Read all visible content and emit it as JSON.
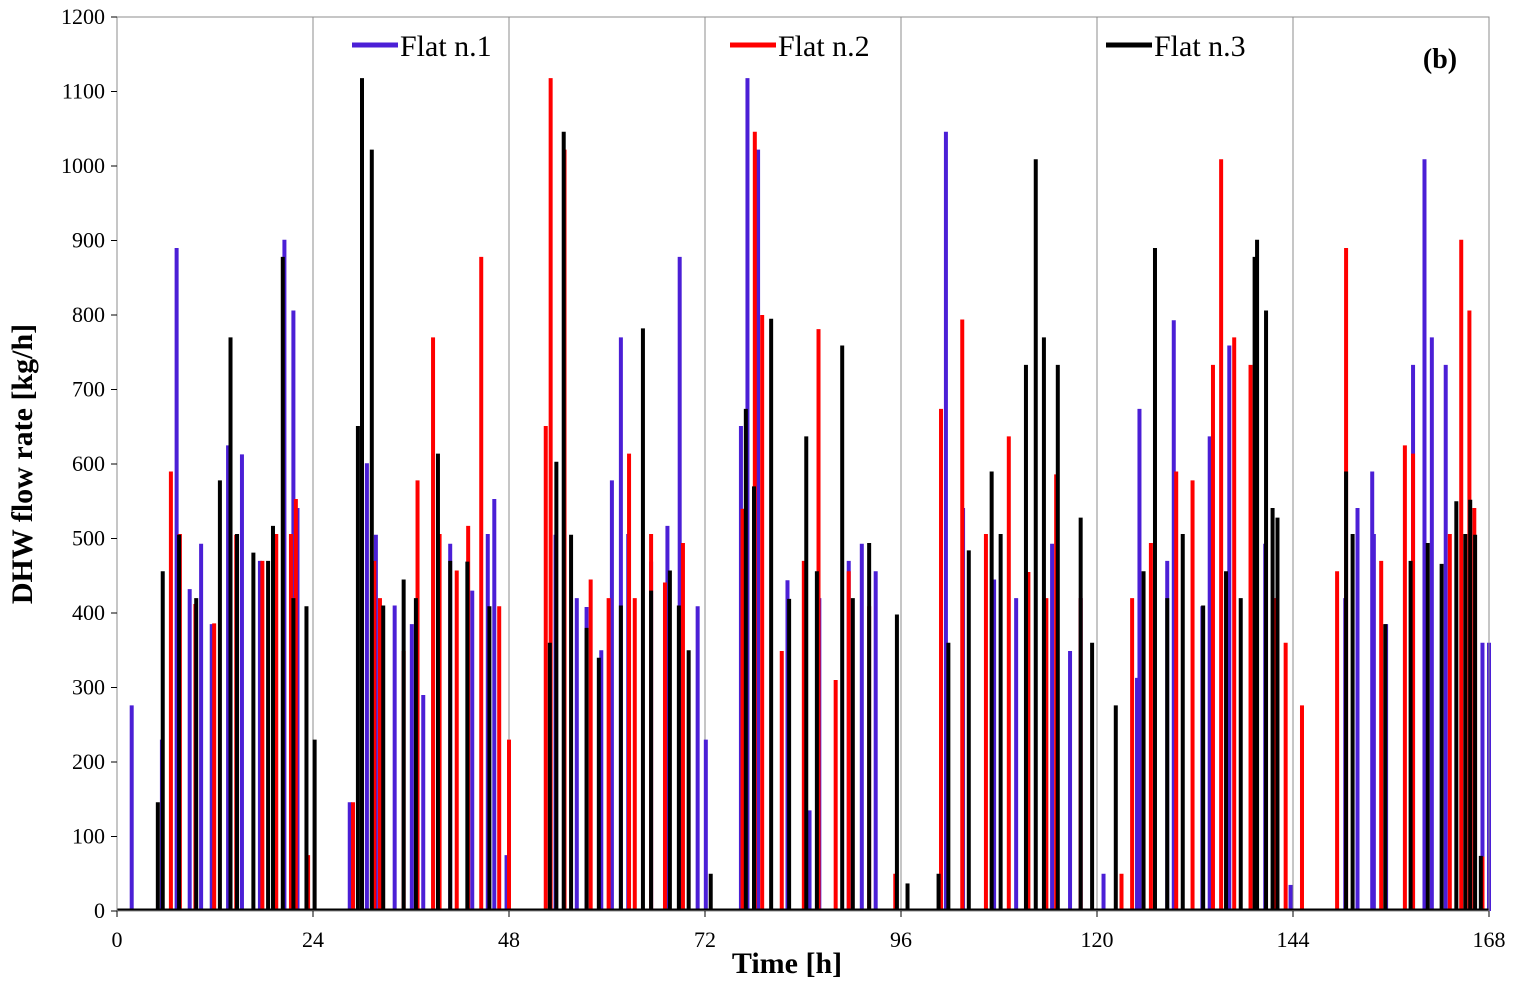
{
  "chart_data": {
    "type": "bar",
    "panel_label": "(b)",
    "xlabel": "Time [h]",
    "ylabel": "DHW flow rate [kg/h]",
    "xlim": [
      0,
      168
    ],
    "ylim": [
      0,
      1200
    ],
    "xticks": [
      0,
      24,
      48,
      72,
      96,
      120,
      144,
      168
    ],
    "yticks": [
      0,
      100,
      200,
      300,
      400,
      500,
      600,
      700,
      800,
      900,
      1000,
      1100,
      1200
    ],
    "grid": "vertical",
    "legend": "top",
    "series": [
      {
        "name": "Flat n.1",
        "color": "#4b1fd6",
        "values": [
          [
            1.8,
            276
          ],
          [
            5.5,
            230
          ],
          [
            7.3,
            890
          ],
          [
            8.9,
            432
          ],
          [
            10.3,
            493
          ],
          [
            11.6,
            385
          ],
          [
            13.6,
            625
          ],
          [
            15.3,
            613
          ],
          [
            17.5,
            470
          ],
          [
            20.5,
            901
          ],
          [
            21.6,
            806
          ],
          [
            22.1,
            541
          ],
          [
            28.5,
            146
          ],
          [
            30.6,
            601
          ],
          [
            31.7,
            505
          ],
          [
            34.0,
            410
          ],
          [
            36.1,
            385
          ],
          [
            37.5,
            290
          ],
          [
            40.8,
            493
          ],
          [
            43.5,
            430
          ],
          [
            45.4,
            506
          ],
          [
            46.2,
            553
          ],
          [
            47.7,
            75
          ],
          [
            53.7,
            505
          ],
          [
            56.3,
            420
          ],
          [
            57.5,
            408
          ],
          [
            59.3,
            350
          ],
          [
            60.6,
            578
          ],
          [
            61.7,
            770
          ],
          [
            62.6,
            506
          ],
          [
            65.4,
            469
          ],
          [
            67.4,
            517
          ],
          [
            68.9,
            878
          ],
          [
            71.1,
            409
          ],
          [
            72.1,
            230
          ],
          [
            76.4,
            651
          ],
          [
            77.2,
            1118
          ],
          [
            78.5,
            1022
          ],
          [
            82.1,
            444
          ],
          [
            84.8,
            135
          ],
          [
            86.0,
            420
          ],
          [
            89.6,
            470
          ],
          [
            91.2,
            493
          ],
          [
            92.9,
            456
          ],
          [
            101.5,
            1046
          ],
          [
            103.6,
            541
          ],
          [
            107.4,
            445
          ],
          [
            110.1,
            420
          ],
          [
            114.5,
            493
          ],
          [
            116.7,
            349
          ],
          [
            118.0,
            420
          ],
          [
            120.8,
            50
          ],
          [
            124.9,
            313
          ],
          [
            125.2,
            674
          ],
          [
            128.6,
            470
          ],
          [
            129.4,
            793
          ],
          [
            132.9,
            409
          ],
          [
            133.8,
            637
          ],
          [
            136.2,
            759
          ],
          [
            140.6,
            493
          ],
          [
            142.0,
            420
          ],
          [
            143.7,
            35
          ],
          [
            150.4,
            420
          ],
          [
            151.9,
            541
          ],
          [
            153.7,
            590
          ],
          [
            153.9,
            506
          ],
          [
            155.4,
            385
          ],
          [
            158.7,
            733
          ],
          [
            160.1,
            1009
          ],
          [
            161.0,
            770
          ],
          [
            162.7,
            733
          ],
          [
            167.2,
            360
          ],
          [
            168.0,
            360
          ]
        ]
      },
      {
        "name": "Flat n.2",
        "color": "#ff0000",
        "values": [
          [
            6.6,
            590
          ],
          [
            7.7,
            506
          ],
          [
            9.6,
            412
          ],
          [
            11.9,
            386
          ],
          [
            14.6,
            505
          ],
          [
            17.8,
            470
          ],
          [
            19.5,
            506
          ],
          [
            21.3,
            506
          ],
          [
            21.9,
            553
          ],
          [
            23.4,
            75
          ],
          [
            28.9,
            146
          ],
          [
            31.5,
            470
          ],
          [
            32.2,
            420
          ],
          [
            35.1,
            349
          ],
          [
            36.8,
            578
          ],
          [
            38.7,
            770
          ],
          [
            39.5,
            506
          ],
          [
            41.6,
            457
          ],
          [
            43.0,
            517
          ],
          [
            44.6,
            878
          ],
          [
            46.8,
            409
          ],
          [
            48.0,
            230
          ],
          [
            52.5,
            651
          ],
          [
            53.1,
            1118
          ],
          [
            54.8,
            1022
          ],
          [
            58.0,
            445
          ],
          [
            60.2,
            420
          ],
          [
            62.7,
            614
          ],
          [
            63.4,
            420
          ],
          [
            65.4,
            506
          ],
          [
            67.1,
            441
          ],
          [
            69.3,
            494
          ],
          [
            76.6,
            540
          ],
          [
            78.1,
            1046
          ],
          [
            79.0,
            800
          ],
          [
            81.4,
            349
          ],
          [
            84.1,
            470
          ],
          [
            85.9,
            781
          ],
          [
            88.0,
            310
          ],
          [
            89.6,
            456
          ],
          [
            92.1,
            409
          ],
          [
            95.3,
            50
          ],
          [
            100.9,
            674
          ],
          [
            103.5,
            794
          ],
          [
            106.4,
            506
          ],
          [
            109.2,
            637
          ],
          [
            111.6,
            455
          ],
          [
            113.8,
            420
          ],
          [
            115.0,
            586
          ],
          [
            118.0,
            420
          ],
          [
            123.0,
            50
          ],
          [
            124.3,
            420
          ],
          [
            126.6,
            494
          ],
          [
            129.7,
            590
          ],
          [
            131.7,
            578
          ],
          [
            134.2,
            733
          ],
          [
            135.2,
            1009
          ],
          [
            136.8,
            770
          ],
          [
            138.8,
            733
          ],
          [
            141.7,
            420
          ],
          [
            143.1,
            360
          ],
          [
            145.1,
            276
          ],
          [
            149.4,
            456
          ],
          [
            150.5,
            890
          ],
          [
            154.8,
            470
          ],
          [
            157.7,
            625
          ],
          [
            158.7,
            614
          ],
          [
            163.2,
            506
          ],
          [
            164.6,
            901
          ],
          [
            165.6,
            806
          ],
          [
            166.2,
            541
          ],
          [
            167.2,
            73
          ]
        ]
      },
      {
        "name": "Flat n.3",
        "color": "#000000",
        "values": [
          [
            5.0,
            146
          ],
          [
            5.6,
            456
          ],
          [
            7.6,
            505
          ],
          [
            9.7,
            420
          ],
          [
            12.6,
            578
          ],
          [
            13.9,
            770
          ],
          [
            14.7,
            506
          ],
          [
            16.7,
            481
          ],
          [
            18.5,
            470
          ],
          [
            19.1,
            517
          ],
          [
            20.3,
            878
          ],
          [
            21.6,
            420
          ],
          [
            23.2,
            409
          ],
          [
            24.2,
            230
          ],
          [
            29.5,
            651
          ],
          [
            30.0,
            1118
          ],
          [
            31.2,
            1022
          ],
          [
            32.6,
            410
          ],
          [
            35.1,
            445
          ],
          [
            36.6,
            420
          ],
          [
            39.3,
            614
          ],
          [
            40.8,
            470
          ],
          [
            42.9,
            469
          ],
          [
            45.6,
            409
          ],
          [
            53.0,
            360
          ],
          [
            53.8,
            603
          ],
          [
            54.7,
            1046
          ],
          [
            55.6,
            505
          ],
          [
            57.5,
            380
          ],
          [
            59.0,
            340
          ],
          [
            61.7,
            410
          ],
          [
            64.4,
            782
          ],
          [
            65.4,
            430
          ],
          [
            67.7,
            457
          ],
          [
            68.8,
            410
          ],
          [
            70.0,
            350
          ],
          [
            72.7,
            50
          ],
          [
            77.0,
            674
          ],
          [
            78.0,
            570
          ],
          [
            80.1,
            795
          ],
          [
            82.3,
            419
          ],
          [
            84.4,
            637
          ],
          [
            85.7,
            456
          ],
          [
            88.8,
            759
          ],
          [
            90.1,
            420
          ],
          [
            92.1,
            494
          ],
          [
            95.5,
            398
          ],
          [
            96.8,
            37
          ],
          [
            100.6,
            50
          ],
          [
            101.8,
            360
          ],
          [
            104.3,
            484
          ],
          [
            107.1,
            590
          ],
          [
            108.2,
            506
          ],
          [
            111.3,
            733
          ],
          [
            112.5,
            1009
          ],
          [
            113.5,
            770
          ],
          [
            115.2,
            733
          ],
          [
            118.0,
            528
          ],
          [
            119.4,
            360
          ],
          [
            122.3,
            276
          ],
          [
            125.7,
            456
          ],
          [
            127.1,
            890
          ],
          [
            128.6,
            420
          ],
          [
            130.5,
            506
          ],
          [
            133.0,
            410
          ],
          [
            135.8,
            456
          ],
          [
            137.6,
            420
          ],
          [
            139.3,
            878
          ],
          [
            139.6,
            901
          ],
          [
            140.7,
            806
          ],
          [
            141.5,
            541
          ],
          [
            142.1,
            528
          ],
          [
            150.5,
            590
          ],
          [
            151.3,
            506
          ],
          [
            155.3,
            385
          ],
          [
            158.4,
            470
          ],
          [
            160.5,
            494
          ],
          [
            162.2,
            466
          ],
          [
            164.0,
            550
          ],
          [
            165.1,
            506
          ],
          [
            165.7,
            552
          ],
          [
            166.3,
            505
          ],
          [
            167.0,
            74
          ]
        ]
      }
    ]
  }
}
